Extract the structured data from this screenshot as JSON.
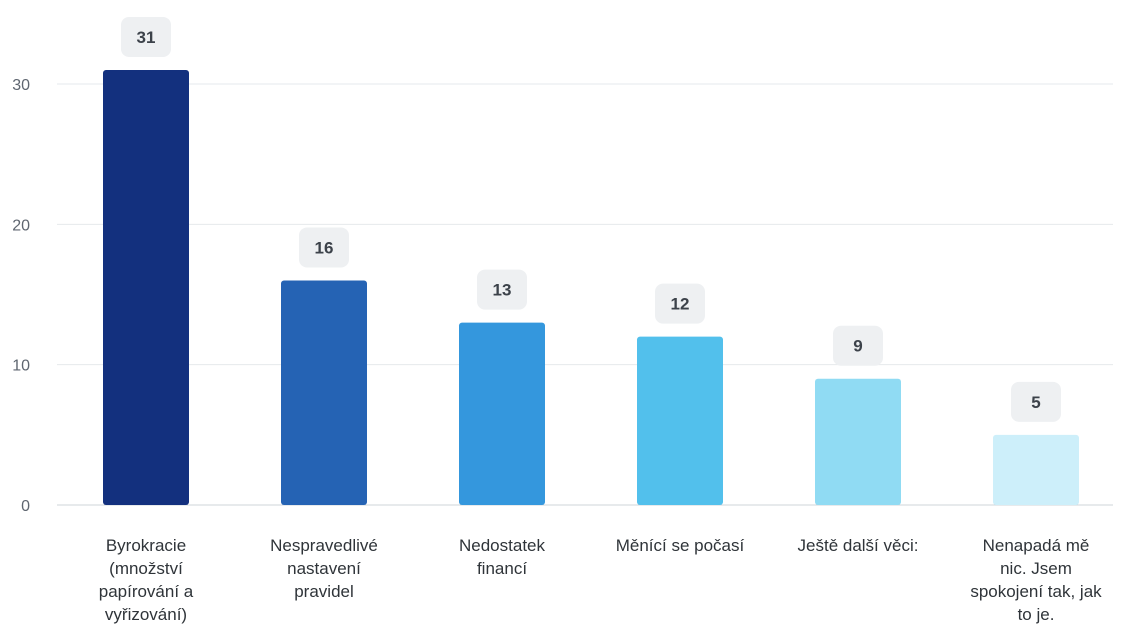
{
  "chart_data": {
    "type": "bar",
    "categories": [
      [
        "Byrokracie",
        "(množství",
        "papírování a",
        "vyřizování)"
      ],
      [
        "Nespravedlivé",
        "nastavení",
        "pravidel"
      ],
      [
        "Nedostatek",
        "financí"
      ],
      [
        "Měnící se počasí"
      ],
      [
        "Ještě další věci:"
      ],
      [
        "Nenapadá mě",
        "nic. Jsem",
        "spokojení tak, jak",
        "to je."
      ]
    ],
    "values": [
      31,
      16,
      13,
      12,
      9,
      5
    ],
    "colors": [
      "#13307e",
      "#2563b4",
      "#3497dd",
      "#52c0ec",
      "#90dbf3",
      "#cdeffa"
    ],
    "yticks": [
      0,
      10,
      20,
      30
    ],
    "ylim": [
      0,
      31
    ],
    "grid": true,
    "title": "",
    "xlabel": "",
    "ylabel": ""
  }
}
